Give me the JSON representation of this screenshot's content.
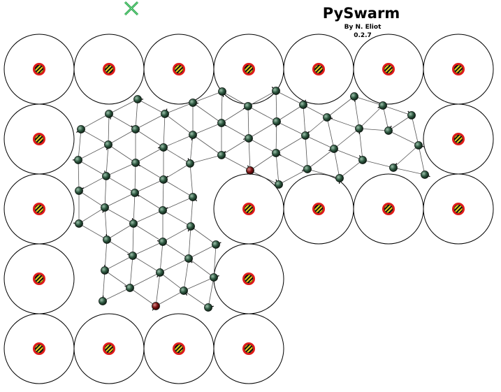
{
  "app": {
    "title": "PySwarm",
    "author": "By N. Eliot",
    "version": "0.2.7"
  },
  "colors": {
    "background": "#ffffff",
    "obstacle_outline": "#000000",
    "marker_ring": "#e11b1b",
    "marker_stripe_a": "#e6d21a",
    "marker_stripe_b": "#111111",
    "agent_body": "#1f3b2b",
    "agent_highlight": "#9fc2ad",
    "agent_alert": "#7a1212",
    "link": "#555555",
    "target_cross": "#1a9a3a"
  },
  "icons": {
    "target": "target-cross-icon",
    "obstacle_marker": "hazard-marker-icon",
    "agent": "agent-node-icon"
  }
}
